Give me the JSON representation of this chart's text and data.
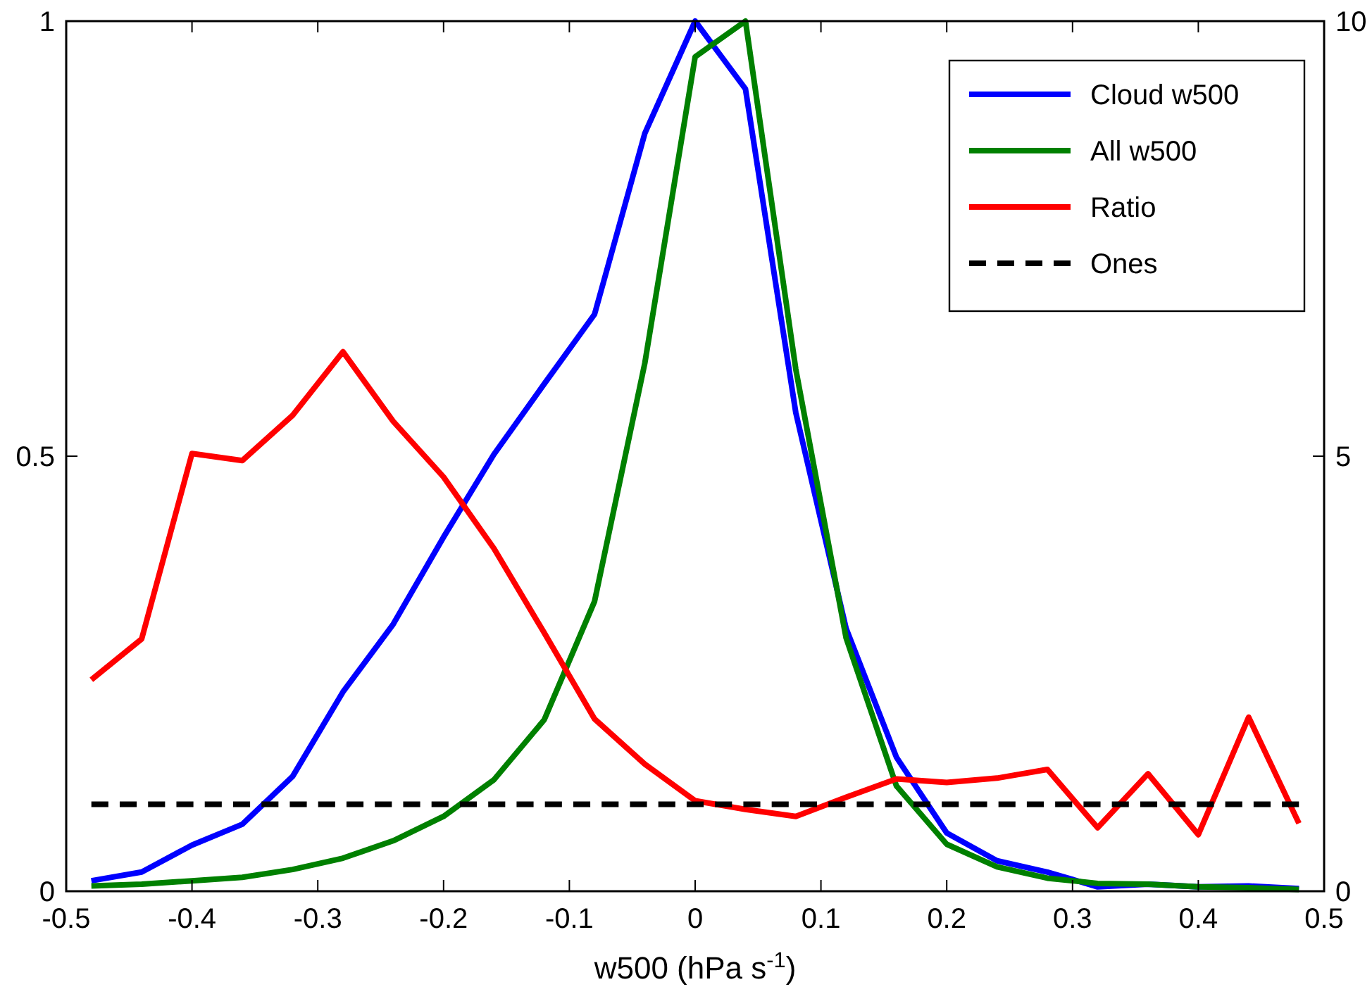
{
  "chart_data": {
    "type": "line",
    "xlabel": "w500 (hPa s$^{-1}$)",
    "x": [
      -0.48,
      -0.44,
      -0.4,
      -0.36,
      -0.32,
      -0.28,
      -0.24,
      -0.2,
      -0.16,
      -0.12,
      -0.08,
      -0.04,
      0,
      0.04,
      0.08,
      0.12,
      0.16,
      0.2,
      0.24,
      0.28,
      0.32,
      0.36,
      0.4,
      0.44,
      0.48
    ],
    "xlim": [
      -0.5,
      0.5
    ],
    "xticks": [
      -0.5,
      -0.4,
      -0.3,
      -0.2,
      -0.1,
      0,
      0.1,
      0.2,
      0.3,
      0.4,
      0.5
    ],
    "ylim": [
      0,
      1
    ],
    "yticks": [
      0,
      0.5,
      1
    ],
    "y2lim": [
      0,
      10
    ],
    "y2ticks": [
      0,
      5,
      10
    ],
    "legend": "top right",
    "grid": false,
    "line_style": "solid",
    "marker": "none",
    "series": [
      {
        "name": "Cloud w500",
        "color": "#0000ff",
        "values": [
          0.012,
          0.022,
          0.053,
          0.077,
          0.132,
          0.229,
          0.307,
          0.407,
          0.502,
          0.583,
          0.663,
          0.871,
          1.0,
          0.922,
          0.55,
          0.302,
          0.154,
          0.067,
          0.035,
          0.022,
          0.005,
          0.008,
          0.005,
          0.006,
          0.003
        ]
      },
      {
        "name": "All w500",
        "color": "#008000",
        "values": [
          0.006,
          0.008,
          0.012,
          0.016,
          0.025,
          0.038,
          0.058,
          0.086,
          0.128,
          0.197,
          0.333,
          0.607,
          0.959,
          1.0,
          0.6,
          0.291,
          0.121,
          0.054,
          0.028,
          0.015,
          0.009,
          0.008,
          0.005,
          0.004,
          0.002
        ]
      },
      {
        "name": "Ratio",
        "color": "#ff0000",
        "axis": "y2",
        "values": [
          2.43,
          2.9,
          5.03,
          4.95,
          5.47,
          6.2,
          5.4,
          4.76,
          3.94,
          2.97,
          1.98,
          1.46,
          1.04,
          0.94,
          0.86,
          1.08,
          1.29,
          1.25,
          1.3,
          1.4,
          0.73,
          1.35,
          0.65,
          2.0,
          0.78
        ]
      },
      {
        "name": "Ones",
        "color": "#000000",
        "axis": "y2",
        "line_style": "dashed",
        "x": [
          -0.48,
          0.48
        ],
        "values": [
          1,
          1
        ]
      }
    ]
  }
}
